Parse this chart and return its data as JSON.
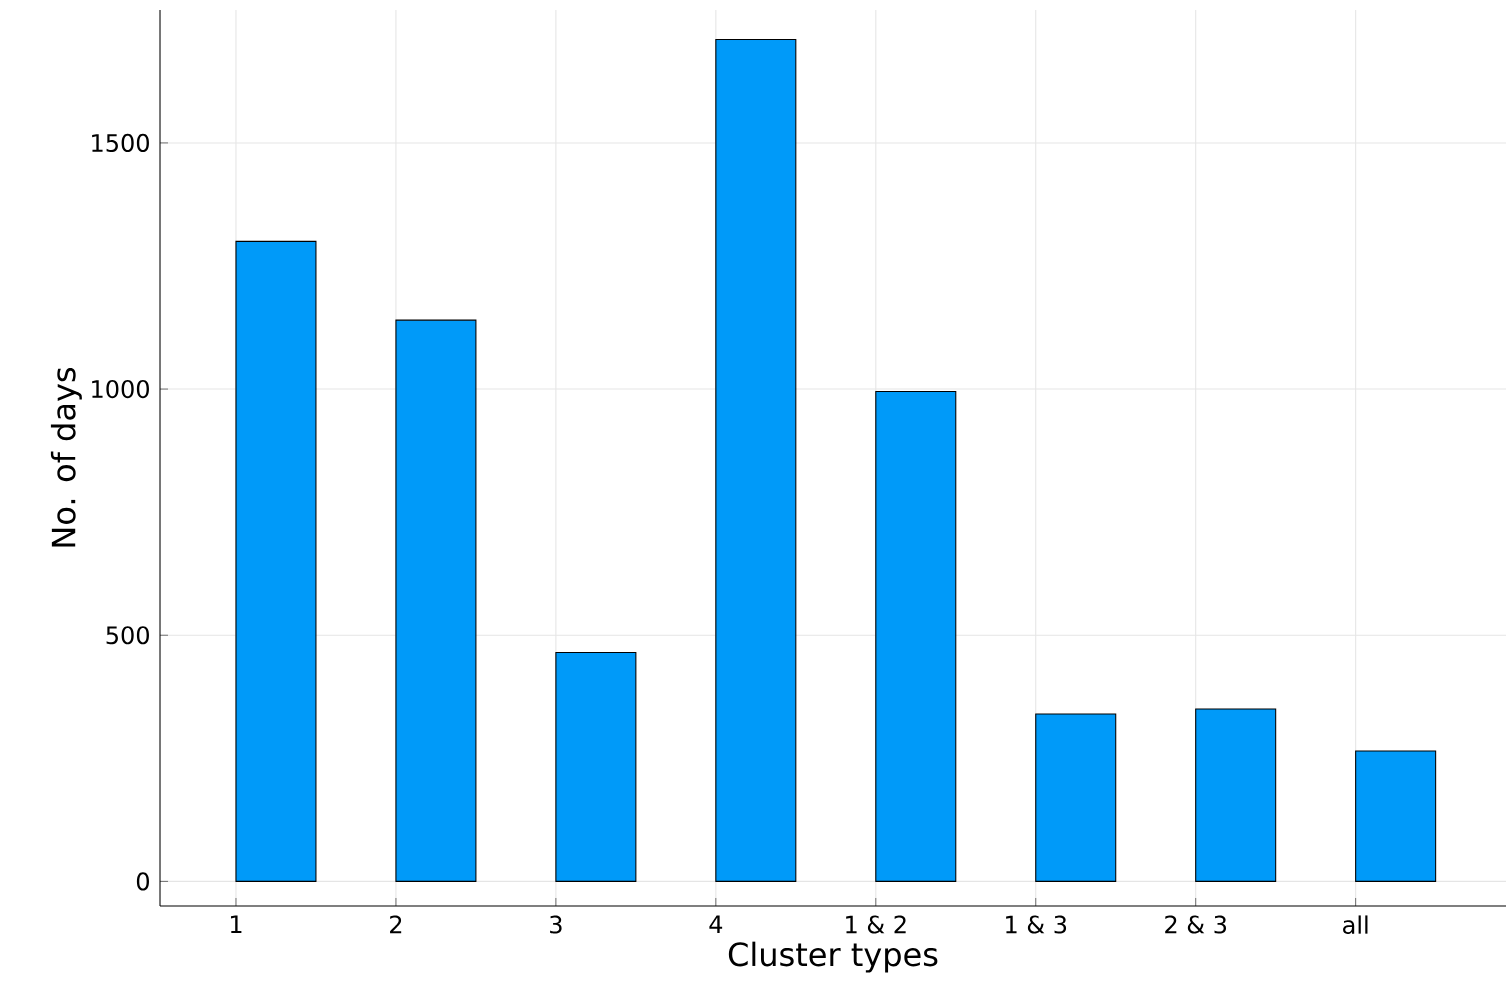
{
  "chart_data": {
    "type": "bar",
    "xlabel": "Cluster types",
    "ylabel": "No. of days",
    "categories": [
      "1",
      "2",
      "3",
      "4",
      "1 & 2",
      "1 & 3",
      "2 & 3",
      "all"
    ],
    "values": [
      1300,
      1140,
      465,
      1710,
      995,
      340,
      350,
      265
    ],
    "color": "#009af9",
    "ylim": [
      -50,
      1770
    ],
    "yticks": [
      0,
      500,
      1000,
      1500
    ],
    "grid": true
  }
}
